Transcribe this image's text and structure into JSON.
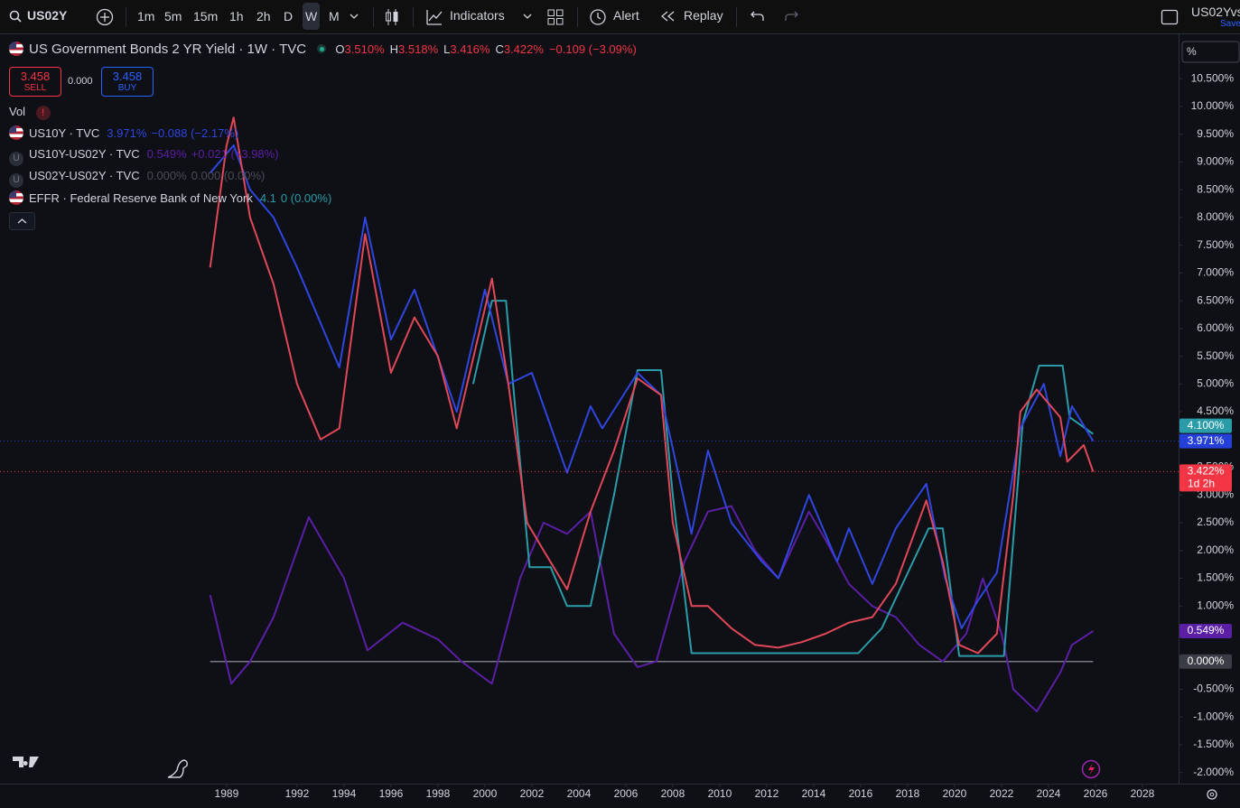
{
  "toolbar": {
    "symbol": "US02Y",
    "intervals": [
      "1m",
      "5m",
      "15m",
      "1h",
      "2h",
      "D",
      "W",
      "M"
    ],
    "active_interval": 6,
    "indicators": "Indicators",
    "alert": "Alert",
    "replay": "Replay",
    "layout_name": "US02Yvs",
    "save": "Save"
  },
  "legend": {
    "title": "US Government Bonds 2 YR Yield · 1W · TVC",
    "ohlc": [
      {
        "key": "O",
        "value": "3.510%"
      },
      {
        "key": "H",
        "value": "3.518%"
      },
      {
        "key": "L",
        "value": "3.416%"
      },
      {
        "key": "C",
        "value": "3.422%"
      }
    ],
    "change": "−0.109 (−3.09%)",
    "sell_price": "3.458",
    "sell": "SELL",
    "spread": "0.000",
    "buy_price": "3.458",
    "buy": "BUY",
    "vol": "Vol",
    "rows": [
      {
        "name": "US10Y · TVC",
        "value": "3.971%",
        "change": "−0.088 (−2.17%)",
        "color": "#2f46e0"
      },
      {
        "name": "US10Y-US02Y · TVC",
        "value": "0.549%",
        "change": "+0.021 (+3.98%)",
        "color": "#5b1fa6"
      },
      {
        "name": "US02Y-US02Y · TVC",
        "value": "0.000%",
        "change": "0.000 (0.00%)",
        "color": "#4a4d55"
      },
      {
        "name": "EFFR · Federal Reserve Bank of New York",
        "value": "4.1",
        "change": "0 (0.00%)",
        "color": "#2a9ca8"
      }
    ]
  },
  "chart": {
    "type": "line",
    "scale_unit": "%",
    "xlim": [
      1979.35,
      2029.54
    ],
    "ylim": [
      -2.2,
      11.3
    ],
    "xticks": [
      1989,
      1992,
      1994,
      1996,
      1998,
      2000,
      2002,
      2004,
      2006,
      2008,
      2010,
      2012,
      2014,
      2016,
      2018,
      2020,
      2022,
      2024,
      2026,
      2028
    ],
    "yticks": [
      {
        "value": 10.5,
        "label": "10.500%"
      },
      {
        "value": 10,
        "label": "10.000%"
      },
      {
        "value": 9.5,
        "label": "9.500%"
      },
      {
        "value": 9,
        "label": "9.000%"
      },
      {
        "value": 8.5,
        "label": "8.500%"
      },
      {
        "value": 8,
        "label": "8.000%"
      },
      {
        "value": 7.5,
        "label": "7.500%"
      },
      {
        "value": 7,
        "label": "7.000%"
      },
      {
        "value": 6.5,
        "label": "6.500%"
      },
      {
        "value": 6,
        "label": "6.000%"
      },
      {
        "value": 5.5,
        "label": "5.500%"
      },
      {
        "value": 5,
        "label": "5.000%"
      },
      {
        "value": 4.5,
        "label": "4.500%"
      },
      {
        "value": 3.5,
        "label": "3.500%"
      },
      {
        "value": 3,
        "label": "3.000%"
      },
      {
        "value": 2.5,
        "label": "2.500%"
      },
      {
        "value": 2,
        "label": "2.000%"
      },
      {
        "value": 1.5,
        "label": "1.500%"
      },
      {
        "value": 1,
        "label": "1.000%"
      },
      {
        "value": -0.5,
        "label": "-0.500%"
      },
      {
        "value": -1,
        "label": "-1.000%"
      },
      {
        "value": -1.5,
        "label": "-1.500%"
      },
      {
        "value": -2,
        "label": "-2.000%"
      }
    ],
    "series": [
      {
        "color": "#787b86",
        "x": [
          1988.3,
          2025.9
        ],
        "values": [
          0,
          0
        ]
      },
      {
        "color": "#5b1fa6",
        "x": [
          1988.3,
          1989.2,
          1990,
          1991,
          1992.5,
          1994,
          1995,
          1996.5,
          1998,
          1999,
          2000.3,
          2001.5,
          2002.5,
          2003.5,
          2004.5,
          2005.5,
          2006.5,
          2007.3,
          2008.5,
          2009.5,
          2010.5,
          2011.5,
          2012.5,
          2013.8,
          2014.5,
          2015.5,
          2016.5,
          2017.5,
          2018.5,
          2019.5,
          2020.5,
          2021.2,
          2022,
          2022.5,
          2023.5,
          2024.5,
          2025,
          2025.9
        ],
        "values": [
          1.2,
          -0.4,
          0,
          0.8,
          2.6,
          1.5,
          0.2,
          0.7,
          0.4,
          0,
          -0.4,
          1.5,
          2.5,
          2.3,
          2.7,
          0.5,
          -0.1,
          0,
          1.8,
          2.7,
          2.8,
          2,
          1.5,
          2.7,
          2.2,
          1.4,
          1,
          0.8,
          0.3,
          0,
          0.5,
          1.5,
          0.5,
          -0.5,
          -0.9,
          -0.2,
          0.3,
          0.55
        ]
      },
      {
        "color": "#2a9ca8",
        "x": [
          1999.5,
          2000.3,
          2000.9,
          2001.2,
          2001.9,
          2002.8,
          2003.5,
          2004.5,
          2005.5,
          2006.5,
          2007.5,
          2008,
          2008.8,
          2015.9,
          2016.9,
          2018.9,
          2019.5,
          2020.2,
          2022.1,
          2022.9,
          2023.6,
          2024.6,
          2024.9,
          2025.9
        ],
        "values": [
          5,
          6.5,
          6.5,
          5,
          1.7,
          1.7,
          1,
          1,
          3,
          5.25,
          5.25,
          3,
          0.15,
          0.15,
          0.6,
          2.4,
          2.4,
          0.1,
          0.1,
          4.3,
          5.33,
          5.33,
          4.4,
          4.1
        ]
      },
      {
        "color": "#2f46e0",
        "x": [
          1988.3,
          1989.3,
          1990,
          1991,
          1992,
          1993.8,
          1994.9,
          1996,
          1997,
          1998.8,
          2000,
          2001,
          2002,
          2003.5,
          2004.5,
          2005,
          2006.5,
          2007.5,
          2008.8,
          2009.5,
          2010.5,
          2011.8,
          2012.5,
          2013.8,
          2015,
          2015.5,
          2016.5,
          2017.5,
          2018.8,
          2019.6,
          2020.3,
          2021,
          2021.8,
          2022.8,
          2023.8,
          2024.5,
          2025,
          2025.9
        ],
        "values": [
          8.8,
          9.3,
          8.5,
          8,
          7.1,
          5.3,
          8,
          5.8,
          6.7,
          4.5,
          6.7,
          5,
          5.2,
          3.4,
          4.6,
          4.2,
          5.2,
          4.8,
          2.3,
          3.8,
          2.5,
          1.8,
          1.5,
          3,
          1.8,
          2.4,
          1.4,
          2.4,
          3.2,
          1.5,
          0.6,
          1.1,
          1.6,
          4.2,
          5,
          3.7,
          4.6,
          3.97
        ]
      },
      {
        "color": "#e0485a",
        "x": [
          1988.3,
          1989,
          1989.3,
          1990,
          1991,
          1992,
          1993,
          1993.8,
          1994.9,
          1996,
          1997,
          1998,
          1998.8,
          2000.3,
          2001,
          2001.8,
          2002.5,
          2003.5,
          2004.5,
          2005.5,
          2006.5,
          2007.5,
          2008,
          2008.8,
          2009.5,
          2010.5,
          2011.5,
          2012.5,
          2013.5,
          2014.5,
          2015.5,
          2016.5,
          2017.5,
          2018.8,
          2019.5,
          2020.2,
          2021,
          2021.8,
          2022.5,
          2022.8,
          2023.5,
          2024.5,
          2024.8,
          2025.5,
          2025.9
        ],
        "values": [
          7.1,
          9.3,
          9.8,
          8,
          6.8,
          5,
          4,
          4.2,
          7.7,
          5.2,
          6.2,
          5.5,
          4.2,
          6.9,
          5,
          2.5,
          2,
          1.3,
          2.7,
          3.8,
          5.1,
          4.8,
          2.5,
          1,
          1,
          0.6,
          0.3,
          0.25,
          0.35,
          0.5,
          0.7,
          0.8,
          1.4,
          2.9,
          1.8,
          0.3,
          0.15,
          0.5,
          3,
          4.5,
          4.9,
          4.4,
          3.6,
          3.9,
          3.42
        ]
      }
    ],
    "badges": [
      {
        "value": 4.1,
        "label": "4.100%",
        "color": "#2a9ca8"
      },
      {
        "value": 3.971,
        "label": "3.971%",
        "color": "#2440d8",
        "dotted": true
      },
      {
        "value": 3.422,
        "label": "3.422%",
        "sub": "1d 2h",
        "color": "#f23645",
        "dotted": true
      },
      {
        "value": 0.549,
        "label": "0.549%",
        "color": "#5b1fa6"
      },
      {
        "value": 0,
        "label": "0.000%",
        "color": "#3a3d45"
      }
    ]
  }
}
